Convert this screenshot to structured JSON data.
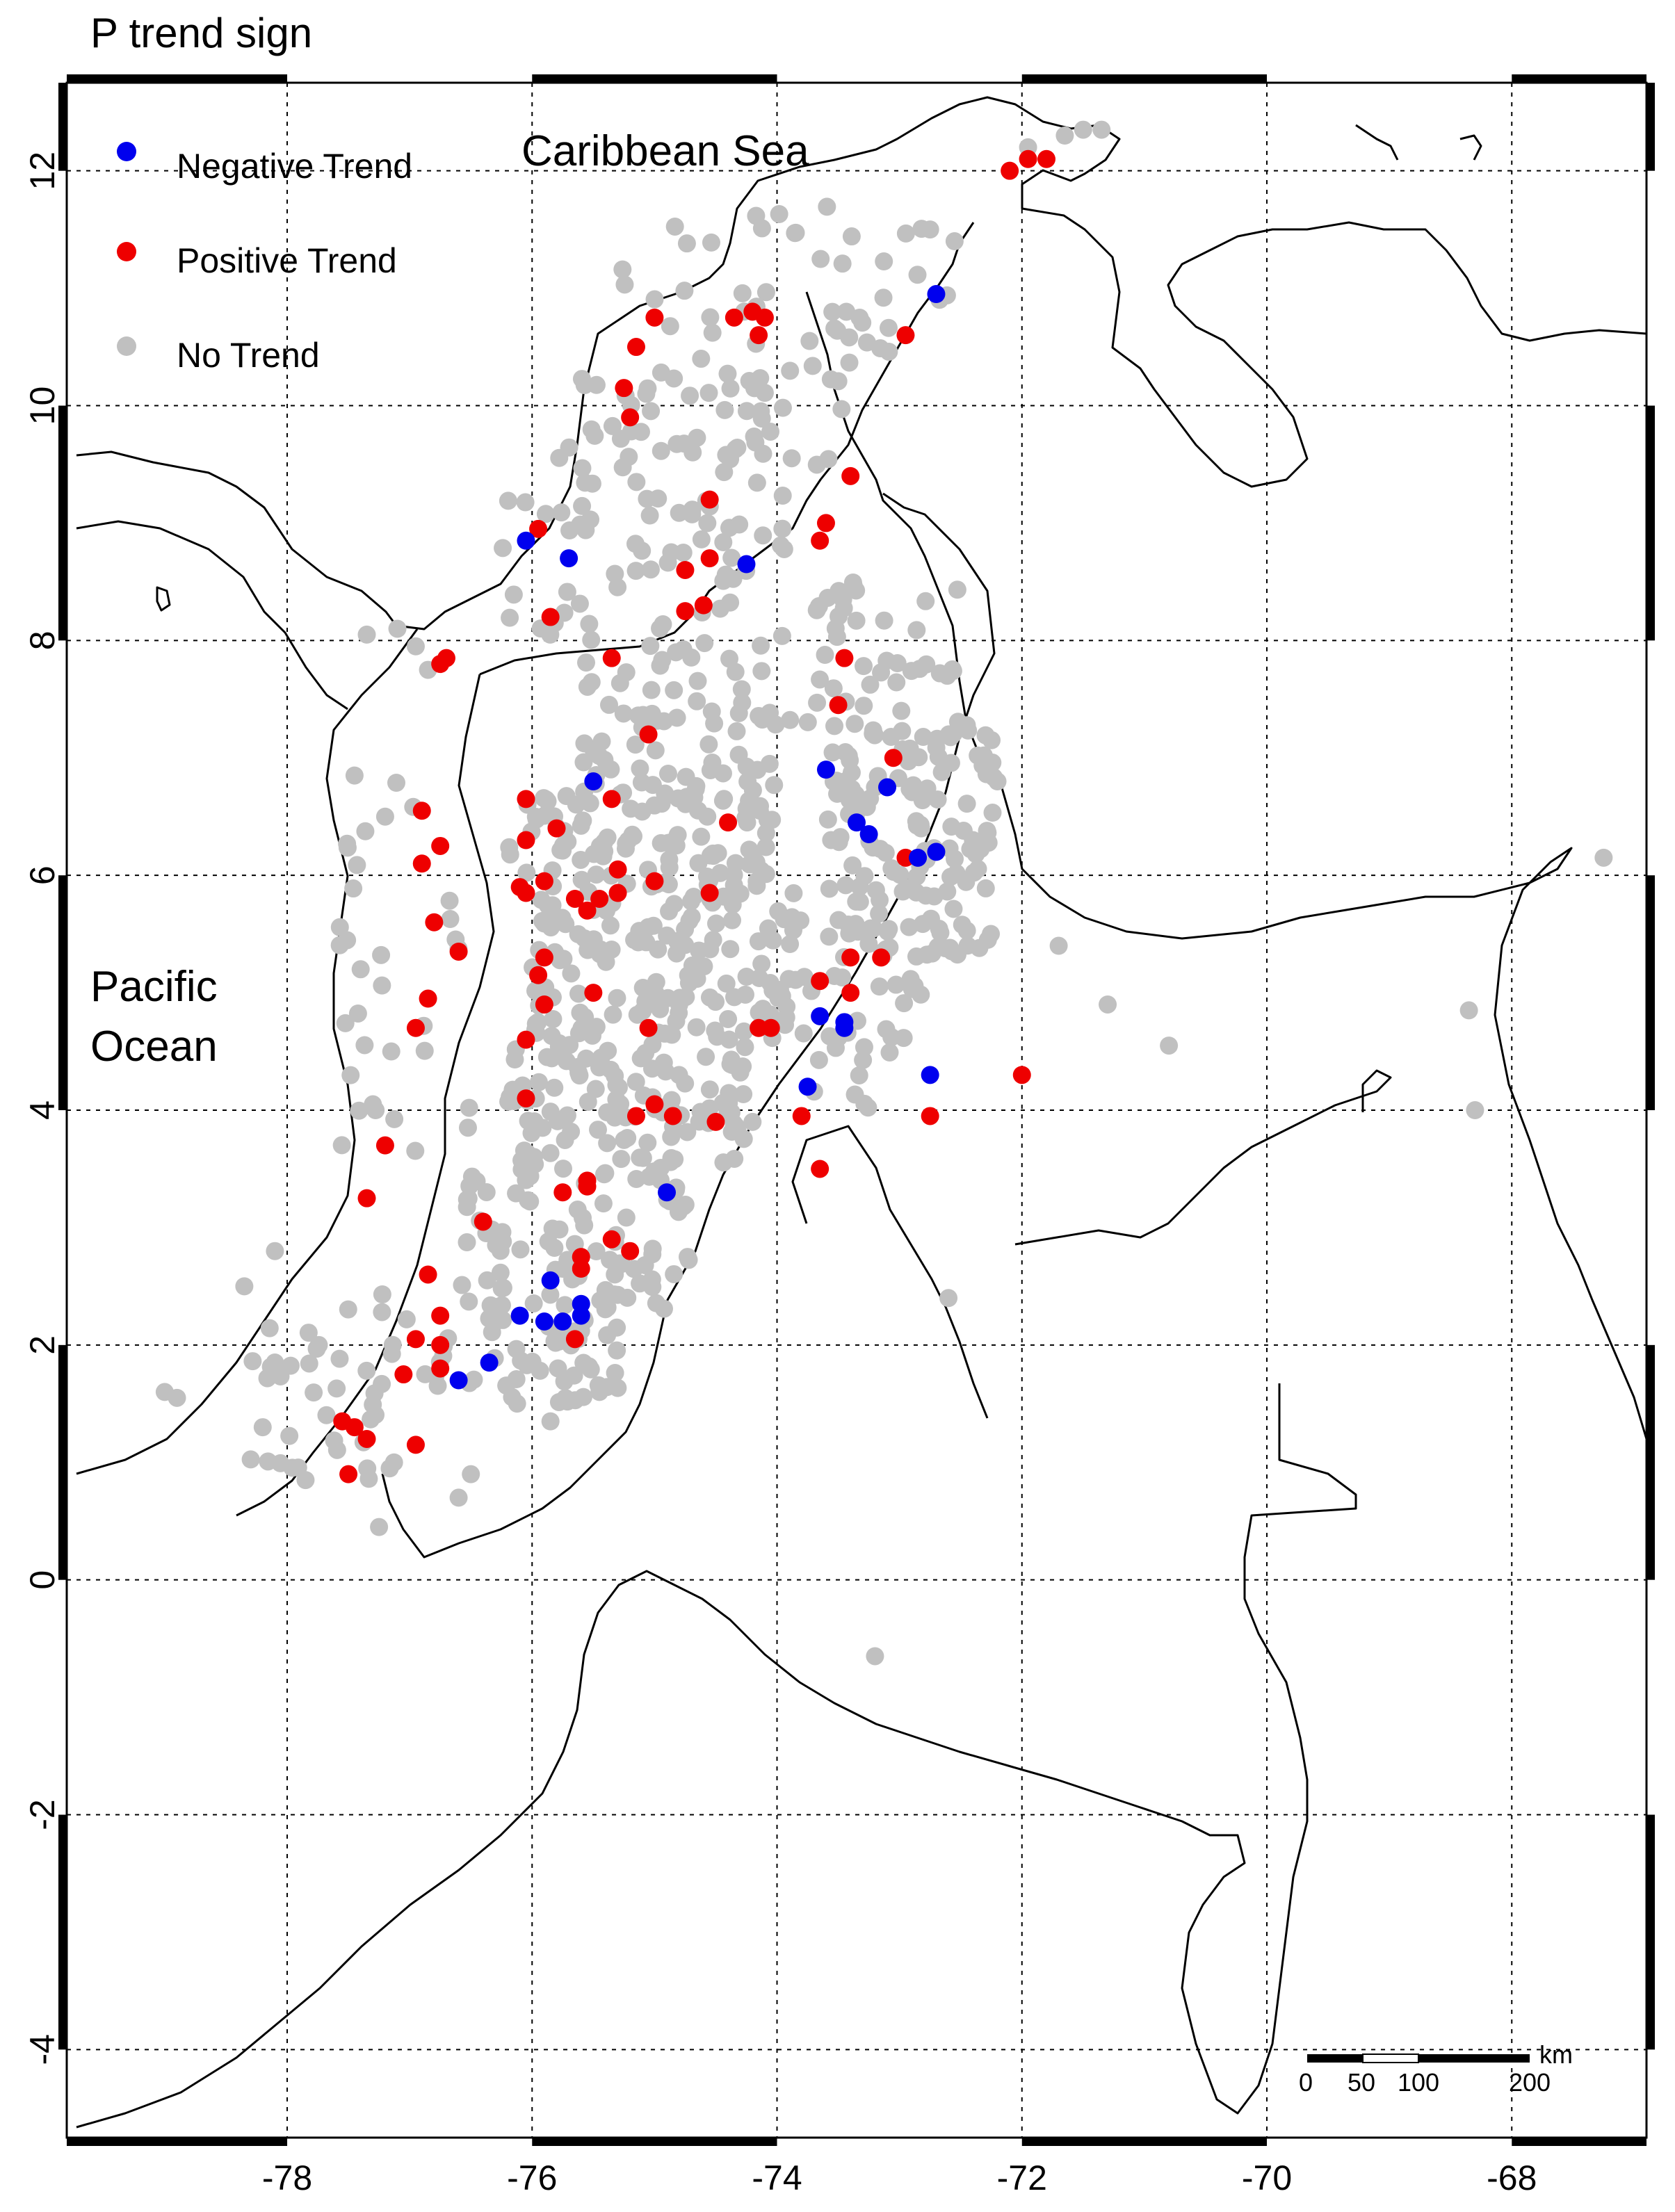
{
  "title": "P trend sign",
  "colors": {
    "negative": "#0000ee",
    "positive": "#ee0000",
    "none": "#c0c0c0",
    "line": "#000000"
  },
  "legend": [
    {
      "label": "Negative Trend",
      "color": "#0000ee"
    },
    {
      "label": "Positive Trend",
      "color": "#ee0000"
    },
    {
      "label": "No Trend",
      "color": "#c0c0c0"
    }
  ],
  "place_labels": {
    "caribbean": "Caribbean Sea",
    "pacific_line1": "Pacific",
    "pacific_line2": "Ocean"
  },
  "scale_bar": {
    "labels": [
      "0",
      "50",
      "100",
      "200"
    ],
    "unit": "km"
  },
  "axes": {
    "xlim": [
      -79.8,
      -66.9
    ],
    "ylim": [
      -4.75,
      12.75
    ],
    "xticks": [
      -78,
      -76,
      -74,
      -72,
      -70,
      -68
    ],
    "yticks": [
      12,
      10,
      8,
      6,
      4,
      2,
      0,
      -2,
      -4
    ],
    "xtick_labels": [
      "-78",
      "-76",
      "-74",
      "-72",
      "-70",
      "-68"
    ],
    "ytick_labels": [
      "12",
      "10",
      "8",
      "6",
      "4",
      "2",
      "0",
      "-2",
      "-4"
    ],
    "grid": true
  },
  "chart_data": {
    "type": "scatter",
    "negative": [
      [
        -76.05,
        8.85
      ],
      [
        -75.7,
        8.7
      ],
      [
        -74.25,
        8.65
      ],
      [
        -72.7,
        10.95
      ],
      [
        -75.5,
        6.8
      ],
      [
        -73.6,
        6.9
      ],
      [
        -73.1,
        6.75
      ],
      [
        -73.35,
        6.45
      ],
      [
        -73.25,
        6.35
      ],
      [
        -72.85,
        6.15
      ],
      [
        -72.7,
        6.2
      ],
      [
        -73.65,
        4.8
      ],
      [
        -73.45,
        4.75
      ],
      [
        -73.45,
        4.7
      ],
      [
        -72.75,
        4.3
      ],
      [
        -73.75,
        4.2
      ],
      [
        -74.9,
        3.3
      ],
      [
        -75.85,
        2.55
      ],
      [
        -75.6,
        2.35
      ],
      [
        -76.1,
        2.25
      ],
      [
        -75.9,
        2.2
      ],
      [
        -75.75,
        2.2
      ],
      [
        -75.6,
        2.25
      ],
      [
        -76.35,
        1.85
      ],
      [
        -76.6,
        1.7
      ]
    ],
    "positive": [
      [
        -72.1,
        12.0
      ],
      [
        -71.95,
        12.1
      ],
      [
        -71.8,
        12.1
      ],
      [
        -74.1,
        10.75
      ],
      [
        -74.35,
        10.75
      ],
      [
        -74.15,
        10.6
      ],
      [
        -74.2,
        10.8
      ],
      [
        -75.0,
        10.75
      ],
      [
        -75.15,
        10.5
      ],
      [
        -75.25,
        10.15
      ],
      [
        -75.2,
        9.9
      ],
      [
        -72.95,
        10.6
      ],
      [
        -74.55,
        9.2
      ],
      [
        -73.4,
        9.4
      ],
      [
        -73.6,
        9.0
      ],
      [
        -73.65,
        8.85
      ],
      [
        -75.95,
        8.95
      ],
      [
        -74.75,
        8.6
      ],
      [
        -74.55,
        8.7
      ],
      [
        -74.6,
        8.3
      ],
      [
        -74.75,
        8.25
      ],
      [
        -75.85,
        8.2
      ],
      [
        -76.7,
        7.85
      ],
      [
        -76.75,
        7.8
      ],
      [
        -75.35,
        7.85
      ],
      [
        -73.45,
        7.85
      ],
      [
        -73.5,
        7.45
      ],
      [
        -75.05,
        7.2
      ],
      [
        -76.05,
        6.65
      ],
      [
        -75.35,
        6.65
      ],
      [
        -74.4,
        6.45
      ],
      [
        -76.9,
        6.55
      ],
      [
        -76.75,
        6.25
      ],
      [
        -76.9,
        6.1
      ],
      [
        -76.05,
        6.3
      ],
      [
        -75.8,
        6.4
      ],
      [
        -73.05,
        7.0
      ],
      [
        -72.95,
        6.15
      ],
      [
        -76.1,
        5.9
      ],
      [
        -75.9,
        5.95
      ],
      [
        -76.05,
        5.85
      ],
      [
        -75.65,
        5.8
      ],
      [
        -75.55,
        5.7
      ],
      [
        -75.3,
        6.05
      ],
      [
        -75.3,
        5.85
      ],
      [
        -75.45,
        5.8
      ],
      [
        -75.0,
        5.95
      ],
      [
        -74.55,
        5.85
      ],
      [
        -76.8,
        5.6
      ],
      [
        -76.6,
        5.35
      ],
      [
        -75.9,
        5.3
      ],
      [
        -75.95,
        5.15
      ],
      [
        -75.5,
        5.0
      ],
      [
        -73.4,
        5.3
      ],
      [
        -73.15,
        5.3
      ],
      [
        -73.65,
        5.1
      ],
      [
        -73.4,
        5.0
      ],
      [
        -76.85,
        4.95
      ],
      [
        -76.95,
        4.7
      ],
      [
        -75.9,
        4.9
      ],
      [
        -74.05,
        4.7
      ],
      [
        -74.15,
        4.7
      ],
      [
        -75.05,
        4.7
      ],
      [
        -76.05,
        4.6
      ],
      [
        -76.05,
        4.1
      ],
      [
        -75.15,
        3.95
      ],
      [
        -75.0,
        4.05
      ],
      [
        -74.85,
        3.95
      ],
      [
        -74.5,
        3.9
      ],
      [
        -73.8,
        3.95
      ],
      [
        -72.75,
        3.95
      ],
      [
        -72.0,
        4.3
      ],
      [
        -75.55,
        3.4
      ],
      [
        -75.55,
        3.35
      ],
      [
        -75.75,
        3.3
      ],
      [
        -73.65,
        3.5
      ],
      [
        -76.4,
        3.05
      ],
      [
        -77.2,
        3.7
      ],
      [
        -77.35,
        3.25
      ],
      [
        -75.35,
        2.9
      ],
      [
        -75.6,
        2.75
      ],
      [
        -75.6,
        2.65
      ],
      [
        -75.2,
        2.8
      ],
      [
        -76.85,
        2.6
      ],
      [
        -76.75,
        2.25
      ],
      [
        -76.95,
        2.05
      ],
      [
        -76.75,
        2.0
      ],
      [
        -75.65,
        2.05
      ],
      [
        -76.75,
        1.8
      ],
      [
        -77.05,
        1.75
      ],
      [
        -77.55,
        1.35
      ],
      [
        -77.45,
        1.3
      ],
      [
        -77.35,
        1.2
      ],
      [
        -76.95,
        1.15
      ],
      [
        -77.5,
        0.9
      ]
    ],
    "none_regions": [
      {
        "lon": [
          -75.3,
          -72.6
        ],
        "lat": [
          10.2,
          11.7
        ],
        "n": 48
      },
      {
        "lon": [
          -75.8,
          -73.4
        ],
        "lat": [
          9.2,
          10.3
        ],
        "n": 60
      },
      {
        "lon": [
          -76.3,
          -73.9
        ],
        "lat": [
          8.0,
          9.2
        ],
        "n": 55
      },
      {
        "lon": [
          -75.6,
          -74.0
        ],
        "lat": [
          6.8,
          8.0
        ],
        "n": 60
      },
      {
        "lon": [
          -76.2,
          -74.0
        ],
        "lat": [
          5.9,
          6.8
        ],
        "n": 110
      },
      {
        "lon": [
          -76.0,
          -73.8
        ],
        "lat": [
          4.6,
          5.9
        ],
        "n": 140
      },
      {
        "lon": [
          -76.2,
          -74.2
        ],
        "lat": [
          3.5,
          4.6
        ],
        "n": 110
      },
      {
        "lon": [
          -76.6,
          -74.7
        ],
        "lat": [
          2.3,
          3.5
        ],
        "n": 90
      },
      {
        "lon": [
          -76.9,
          -75.3
        ],
        "lat": [
          1.5,
          2.3
        ],
        "n": 55
      },
      {
        "lon": [
          -73.9,
          -72.5
        ],
        "lat": [
          7.3,
          8.6
        ],
        "n": 40
      },
      {
        "lon": [
          -73.6,
          -72.2
        ],
        "lat": [
          5.3,
          7.3
        ],
        "n": 150
      },
      {
        "lon": [
          -73.8,
          -72.8
        ],
        "lat": [
          4.0,
          5.3
        ],
        "n": 30
      },
      {
        "lon": [
          -77.6,
          -76.5
        ],
        "lat": [
          3.0,
          6.8
        ],
        "n": 30
      },
      {
        "lon": [
          -78.3,
          -77.0
        ],
        "lat": [
          0.8,
          2.5
        ],
        "n": 40
      }
    ],
    "none_extra": [
      [
        -71.95,
        12.2
      ],
      [
        -71.65,
        12.3
      ],
      [
        -71.5,
        12.35
      ],
      [
        -71.35,
        12.35
      ],
      [
        -72.55,
        11.4
      ],
      [
        -72.75,
        11.5
      ],
      [
        -77.35,
        8.05
      ],
      [
        -77.1,
        8.1
      ],
      [
        -76.95,
        7.95
      ],
      [
        -76.85,
        7.75
      ],
      [
        -77.45,
        6.85
      ],
      [
        -77.2,
        6.5
      ],
      [
        -77.4,
        5.2
      ],
      [
        -77.15,
        4.5
      ],
      [
        -77.3,
        4.05
      ],
      [
        -78.1,
        2.8
      ],
      [
        -78.35,
        2.5
      ],
      [
        -78.9,
        1.55
      ],
      [
        -79.0,
        1.6
      ],
      [
        -78.2,
        1.3
      ],
      [
        -77.85,
        0.85
      ],
      [
        -77.25,
        0.45
      ],
      [
        -76.6,
        0.7
      ],
      [
        -76.5,
        0.9
      ],
      [
        -75.85,
        1.35
      ],
      [
        -75.45,
        1.6
      ],
      [
        -71.7,
        5.4
      ],
      [
        -71.3,
        4.9
      ],
      [
        -70.8,
        4.55
      ],
      [
        -68.35,
        4.85
      ],
      [
        -68.3,
        4.0
      ],
      [
        -67.25,
        6.15
      ],
      [
        -72.6,
        2.4
      ],
      [
        -73.2,
        -0.65
      ],
      [
        -74.8,
        4.3
      ],
      [
        -74.2,
        3.9
      ],
      [
        -72.4,
        6.3
      ],
      [
        -72.2,
        6.8
      ]
    ]
  }
}
